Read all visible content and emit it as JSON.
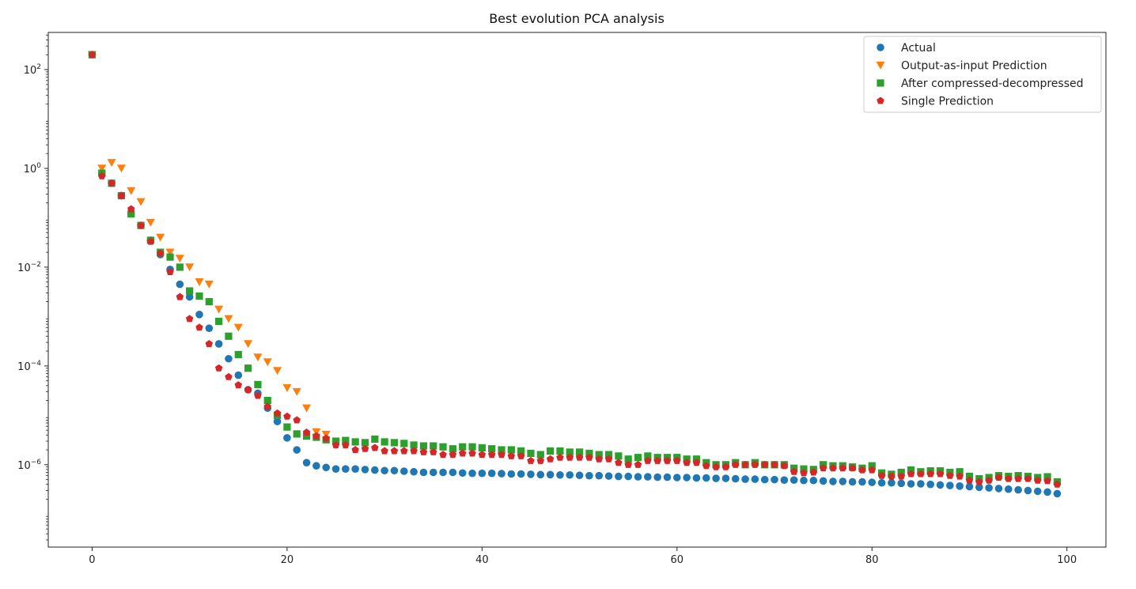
{
  "chart_data": {
    "type": "scatter",
    "title": "Best evolution PCA analysis",
    "xlabel": "",
    "ylabel": "",
    "yscale": "log",
    "xlim": [
      -4.5,
      104
    ],
    "ylim": [
      2.15e-08,
      566
    ],
    "x_ticks": [
      0,
      20,
      40,
      60,
      80,
      100
    ],
    "y_ticks": [
      {
        "value": 100,
        "base": "10",
        "exp": "2"
      },
      {
        "value": 1,
        "base": "10",
        "exp": "0"
      },
      {
        "value": 0.01,
        "base": "10",
        "exp": "−2"
      },
      {
        "value": 0.0001,
        "base": "10",
        "exp": "−4"
      },
      {
        "value": 1e-06,
        "base": "10",
        "exp": "−6"
      }
    ],
    "grid": false,
    "legend_position": "top-right",
    "series": [
      {
        "name": "Actual",
        "marker": "circle",
        "color": "#1f77b4",
        "x": [
          0,
          1,
          2,
          3,
          4,
          5,
          6,
          7,
          8,
          9,
          10,
          11,
          12,
          13,
          14,
          15,
          16,
          17,
          18,
          19,
          20,
          21,
          22,
          23,
          24,
          25,
          26,
          27,
          28,
          29,
          30,
          31,
          32,
          33,
          34,
          35,
          36,
          37,
          38,
          39,
          40,
          41,
          42,
          43,
          44,
          45,
          46,
          47,
          48,
          49,
          50,
          51,
          52,
          53,
          54,
          55,
          56,
          57,
          58,
          59,
          60,
          61,
          62,
          63,
          64,
          65,
          66,
          67,
          68,
          69,
          70,
          71,
          72,
          73,
          74,
          75,
          76,
          77,
          78,
          79,
          80,
          81,
          82,
          83,
          84,
          85,
          86,
          87,
          88,
          89,
          90,
          91,
          92,
          93,
          94,
          95,
          96,
          97,
          98,
          99
        ],
        "y": [
          200,
          0.8,
          0.5,
          0.28,
          0.12,
          0.07,
          0.035,
          0.018,
          0.009,
          0.0045,
          0.0025,
          0.0011,
          0.00058,
          0.00028,
          0.00014,
          6.5e-05,
          3.3e-05,
          2.8e-05,
          1.4e-05,
          7.5e-06,
          3.5e-06,
          2e-06,
          1.1e-06,
          9.5e-07,
          8.8e-07,
          8.2e-07,
          8.2e-07,
          8.2e-07,
          8e-07,
          7.8e-07,
          7.6e-07,
          7.6e-07,
          7.4e-07,
          7.2e-07,
          7e-07,
          7e-07,
          7e-07,
          7e-07,
          6.8e-07,
          6.7e-07,
          6.7e-07,
          6.7e-07,
          6.6e-07,
          6.5e-07,
          6.5e-07,
          6.4e-07,
          6.3e-07,
          6.3e-07,
          6.2e-07,
          6.2e-07,
          6.1e-07,
          6e-07,
          6e-07,
          5.9e-07,
          5.8e-07,
          5.8e-07,
          5.7e-07,
          5.7e-07,
          5.6e-07,
          5.6e-07,
          5.5e-07,
          5.5e-07,
          5.4e-07,
          5.4e-07,
          5.3e-07,
          5.3e-07,
          5.2e-07,
          5.1e-07,
          5.1e-07,
          5e-07,
          5e-07,
          4.9e-07,
          4.9e-07,
          4.8e-07,
          4.8e-07,
          4.7e-07,
          4.6e-07,
          4.6e-07,
          4.5e-07,
          4.5e-07,
          4.4e-07,
          4.3e-07,
          4.3e-07,
          4.2e-07,
          4.1e-07,
          4.1e-07,
          4e-07,
          3.9e-07,
          3.8e-07,
          3.7e-07,
          3.6e-07,
          3.5e-07,
          3.4e-07,
          3.3e-07,
          3.2e-07,
          3.1e-07,
          3e-07,
          2.9e-07,
          2.8e-07,
          2.6e-07
        ]
      },
      {
        "name": "Output-as-input Prediction",
        "marker": "triangle-down",
        "color": "#ff7f0e",
        "x": [
          0,
          1,
          2,
          3,
          4,
          5,
          6,
          7,
          8,
          9,
          10,
          11,
          12,
          13,
          14,
          15,
          16,
          17,
          18,
          19,
          20,
          21,
          22,
          23,
          24
        ],
        "y": [
          200,
          1,
          1.3,
          1,
          0.35,
          0.21,
          0.08,
          0.04,
          0.02,
          0.015,
          0.01,
          0.005,
          0.0045,
          0.0014,
          0.0009,
          0.0006,
          0.00028,
          0.00015,
          0.00012,
          8e-05,
          3.6e-05,
          3e-05,
          1.4e-05,
          4.6e-06,
          4.1e-06
        ]
      },
      {
        "name": "After compressed-decompressed",
        "marker": "square",
        "color": "#2ca02c",
        "x": [
          0,
          1,
          2,
          3,
          4,
          5,
          6,
          7,
          8,
          9,
          10,
          11,
          12,
          13,
          14,
          15,
          16,
          17,
          18,
          19,
          20,
          21,
          22,
          23,
          24,
          25,
          26,
          27,
          28,
          29,
          30,
          31,
          32,
          33,
          34,
          35,
          36,
          37,
          38,
          39,
          40,
          41,
          42,
          43,
          44,
          45,
          46,
          47,
          48,
          49,
          50,
          51,
          52,
          53,
          54,
          55,
          56,
          57,
          58,
          59,
          60,
          61,
          62,
          63,
          64,
          65,
          66,
          67,
          68,
          69,
          70,
          71,
          72,
          73,
          74,
          75,
          76,
          77,
          78,
          79,
          80,
          81,
          82,
          83,
          84,
          85,
          86,
          87,
          88,
          89,
          90,
          91,
          92,
          93,
          94,
          95,
          96,
          97,
          98,
          99
        ],
        "y": [
          200,
          0.8,
          0.5,
          0.28,
          0.12,
          0.07,
          0.035,
          0.02,
          0.016,
          0.01,
          0.0033,
          0.0026,
          0.002,
          0.0008,
          0.0004,
          0.00017,
          9e-05,
          4.2e-05,
          2e-05,
          1e-05,
          5.8e-06,
          4.2e-06,
          3.8e-06,
          3.6e-06,
          3.2e-06,
          3e-06,
          3.1e-06,
          2.9e-06,
          2.8e-06,
          3.3e-06,
          2.9e-06,
          2.8e-06,
          2.7e-06,
          2.5e-06,
          2.4e-06,
          2.4e-06,
          2.3e-06,
          2.1e-06,
          2.3e-06,
          2.3e-06,
          2.2e-06,
          2.1e-06,
          2e-06,
          2e-06,
          1.9e-06,
          1.7e-06,
          1.6e-06,
          1.9e-06,
          1.9e-06,
          1.8e-06,
          1.8e-06,
          1.7e-06,
          1.6e-06,
          1.6e-06,
          1.5e-06,
          1.3e-06,
          1.4e-06,
          1.5e-06,
          1.4e-06,
          1.4e-06,
          1.4e-06,
          1.3e-06,
          1.3e-06,
          1.1e-06,
          1e-06,
          1e-06,
          1.1e-06,
          1e-06,
          1.1e-06,
          1e-06,
          1e-06,
          1e-06,
          8.5e-07,
          8.2e-07,
          8e-07,
          1e-06,
          9.5e-07,
          9.5e-07,
          9e-07,
          8.5e-07,
          9.5e-07,
          6.8e-07,
          6.4e-07,
          7e-07,
          7.8e-07,
          7.2e-07,
          7.5e-07,
          7.5e-07,
          7e-07,
          7.2e-07,
          5.8e-07,
          5.2e-07,
          5.5e-07,
          6e-07,
          5.8e-07,
          6e-07,
          5.8e-07,
          5.5e-07,
          5.7e-07,
          4.5e-07
        ]
      },
      {
        "name": "Single Prediction",
        "marker": "pentagon",
        "color": "#d62728",
        "x": [
          0,
          1,
          2,
          3,
          4,
          5,
          6,
          7,
          8,
          9,
          10,
          11,
          12,
          13,
          14,
          15,
          16,
          17,
          18,
          19,
          20,
          21,
          22,
          23,
          24,
          25,
          26,
          27,
          28,
          29,
          30,
          31,
          32,
          33,
          34,
          35,
          36,
          37,
          38,
          39,
          40,
          41,
          42,
          43,
          44,
          45,
          46,
          47,
          48,
          49,
          50,
          51,
          52,
          53,
          54,
          55,
          56,
          57,
          58,
          59,
          60,
          61,
          62,
          63,
          64,
          65,
          66,
          67,
          68,
          69,
          70,
          71,
          72,
          73,
          74,
          75,
          76,
          77,
          78,
          79,
          80,
          81,
          82,
          83,
          84,
          85,
          86,
          87,
          88,
          89,
          90,
          91,
          92,
          93,
          94,
          95,
          96,
          97,
          98,
          99
        ],
        "y": [
          200,
          0.7,
          0.5,
          0.28,
          0.15,
          0.07,
          0.033,
          0.019,
          0.008,
          0.0025,
          0.0009,
          0.0006,
          0.00028,
          9e-05,
          6e-05,
          4.1e-05,
          3.3e-05,
          2.5e-05,
          1.5e-05,
          1.1e-05,
          9.5e-06,
          8e-06,
          4.5e-06,
          3.8e-06,
          3.4e-06,
          2.5e-06,
          2.5e-06,
          2e-06,
          2.1e-06,
          2.2e-06,
          1.9e-06,
          1.9e-06,
          1.9e-06,
          1.9e-06,
          1.8e-06,
          1.8e-06,
          1.6e-06,
          1.6e-06,
          1.7e-06,
          1.7e-06,
          1.6e-06,
          1.6e-06,
          1.6e-06,
          1.5e-06,
          1.5e-06,
          1.2e-06,
          1.2e-06,
          1.3e-06,
          1.4e-06,
          1.4e-06,
          1.4e-06,
          1.4e-06,
          1.3e-06,
          1.3e-06,
          1.1e-06,
          1e-06,
          1e-06,
          1.2e-06,
          1.2e-06,
          1.2e-06,
          1.2e-06,
          1.1e-06,
          1.1e-06,
          9.5e-07,
          9e-07,
          9e-07,
          1e-06,
          1e-06,
          1e-06,
          1e-06,
          1e-06,
          9.5e-07,
          7.2e-07,
          6.8e-07,
          7e-07,
          8.5e-07,
          8.5e-07,
          8.5e-07,
          8.5e-07,
          7.8e-07,
          7.8e-07,
          6e-07,
          5.8e-07,
          5.8e-07,
          6.5e-07,
          6.5e-07,
          6.5e-07,
          6.5e-07,
          6e-07,
          5.8e-07,
          4.8e-07,
          4.5e-07,
          4.8e-07,
          5.5e-07,
          5.2e-07,
          5.2e-07,
          5.2e-07,
          4.8e-07,
          4.7e-07,
          4e-07
        ]
      }
    ]
  }
}
